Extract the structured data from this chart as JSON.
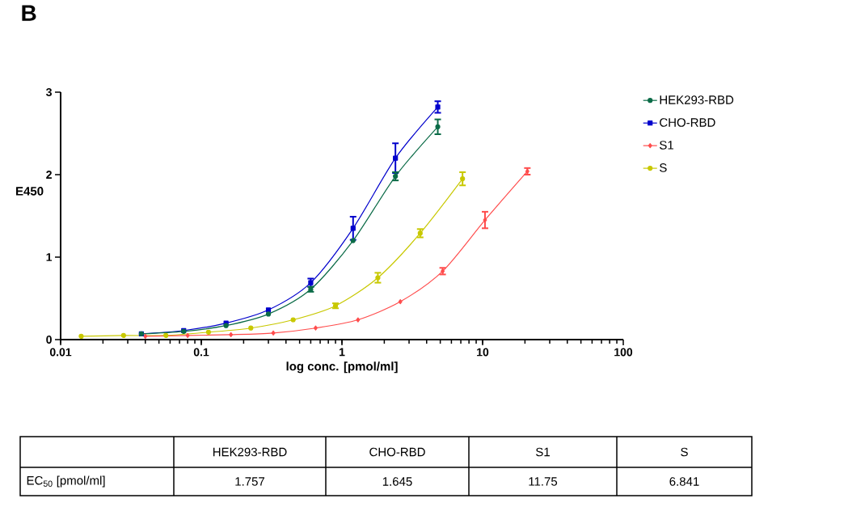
{
  "chart_data": {
    "type": "line",
    "xlabel": "log conc. [pmol/ml]",
    "ylabel": "E450",
    "log": "x",
    "xlim": [
      0.01,
      100
    ],
    "ylim": [
      0,
      3
    ],
    "xticks": [
      0.01,
      0.1,
      1,
      10,
      100
    ],
    "yticks": [
      0,
      1,
      2,
      3
    ],
    "legend": "top right",
    "series": [
      {
        "name": "HEK293-RBD",
        "color": "#0b6b47",
        "marker": "circle",
        "x": [
          0.0375,
          0.075,
          0.15,
          0.3,
          0.6,
          1.2,
          2.4,
          4.8
        ],
        "values": [
          0.07,
          0.1,
          0.17,
          0.31,
          0.61,
          1.2,
          1.98,
          2.58
        ],
        "errors": [
          null,
          null,
          null,
          null,
          0.03,
          null,
          0.05,
          0.09
        ]
      },
      {
        "name": "CHO-RBD",
        "color": "#0000cc",
        "marker": "square",
        "x": [
          0.0375,
          0.075,
          0.15,
          0.3,
          0.6,
          1.2,
          2.4,
          4.8
        ],
        "values": [
          0.07,
          0.11,
          0.2,
          0.36,
          0.69,
          1.35,
          2.2,
          2.82
        ],
        "errors": [
          null,
          null,
          null,
          null,
          0.05,
          0.14,
          0.18,
          0.07
        ]
      },
      {
        "name": "S1",
        "color": "#ff4d4d",
        "marker": "diamond",
        "x": [
          0.04,
          0.08,
          0.1625,
          0.325,
          0.65,
          1.3,
          2.6,
          5.2,
          10.4,
          20.8
        ],
        "values": [
          0.04,
          0.05,
          0.06,
          0.08,
          0.14,
          0.24,
          0.46,
          0.83,
          1.45,
          2.04
        ],
        "errors": [
          null,
          null,
          null,
          null,
          null,
          null,
          null,
          0.04,
          0.1,
          0.04
        ]
      },
      {
        "name": "S",
        "color": "#c8c800",
        "marker": "circle",
        "x": [
          0.014,
          0.028,
          0.056,
          0.1125,
          0.225,
          0.45,
          0.9,
          1.8,
          3.6,
          7.2
        ],
        "values": [
          0.04,
          0.05,
          0.05,
          0.09,
          0.14,
          0.24,
          0.41,
          0.75,
          1.29,
          1.95
        ],
        "errors": [
          null,
          null,
          null,
          null,
          null,
          null,
          0.03,
          0.06,
          0.05,
          0.08
        ]
      }
    ],
    "annotations": [
      "B",
      "EC$_{50}$ [pmol/ml]",
      "1.757",
      "1.645",
      "11.75",
      "6.841"
    ]
  }
}
